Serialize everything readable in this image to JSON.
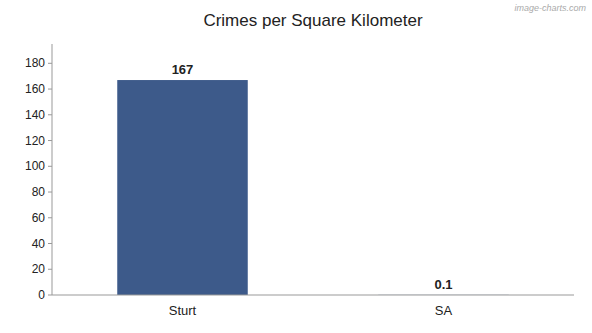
{
  "chart_data": {
    "type": "bar",
    "title": "Crimes per Square Kilometer",
    "categories": [
      "Sturt",
      "SA"
    ],
    "values": [
      167,
      0.1
    ],
    "color": "#3d5a8a",
    "data_labels": true,
    "ylim": [
      0,
      195
    ],
    "yticks": [
      0,
      20,
      40,
      60,
      80,
      100,
      120,
      140,
      160,
      180
    ],
    "grid": false,
    "annotations": [
      "image-charts.com"
    ]
  }
}
